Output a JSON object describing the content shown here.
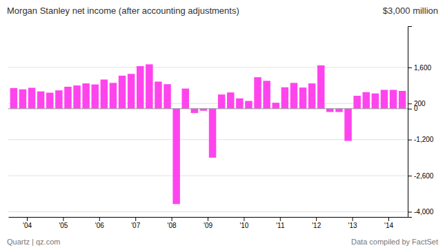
{
  "chart_data": {
    "type": "bar",
    "title": "Morgan Stanley net income (after accounting adjustments)",
    "subtitle": "$3,000 million",
    "annotations": [
      "Quartz | qz.com",
      "Data compiled by FactSet"
    ],
    "categories": [
      null,
      "'04",
      null,
      null,
      null,
      "'05",
      null,
      null,
      null,
      "'06",
      null,
      null,
      null,
      "'07",
      null,
      null,
      null,
      "'08",
      null,
      null,
      null,
      "'09",
      null,
      null,
      null,
      "'10",
      null,
      null,
      null,
      "'11",
      null,
      null,
      null,
      "'12",
      null,
      null,
      null,
      "'13",
      null,
      null,
      null,
      "'14",
      null,
      null
    ],
    "values": [
      800,
      750,
      810,
      670,
      620,
      710,
      850,
      900,
      980,
      940,
      1130,
      1000,
      1280,
      1350,
      1650,
      1720,
      1050,
      950,
      -3700,
      780,
      -170,
      -80,
      -1900,
      550,
      630,
      400,
      300,
      1220,
      1080,
      230,
      830,
      1000,
      820,
      980,
      1680,
      -130,
      -130,
      -1250,
      500,
      640,
      590,
      730,
      730,
      690
    ],
    "color": "#FF44EE",
    "ylim": [
      -4200,
      3200
    ],
    "yticks": [
      {
        "value": 1600,
        "label": "1,600"
      },
      200,
      0,
      {
        "value": -1200,
        "label": "-1,200"
      },
      {
        "value": -2600,
        "label": "-2,600"
      },
      {
        "value": -4000,
        "label": "-4,000"
      }
    ],
    "grid": true
  }
}
